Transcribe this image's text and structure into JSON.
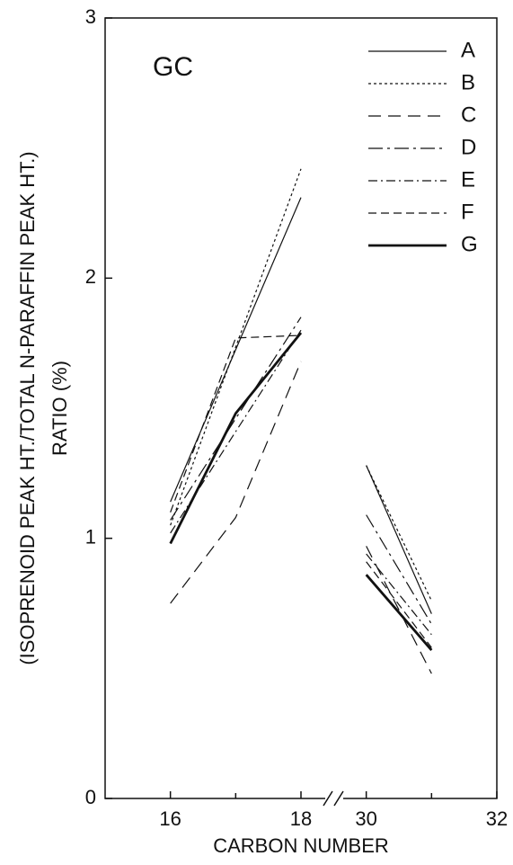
{
  "chart_data": {
    "type": "line",
    "annotation": "GC",
    "xlabel": "CARBON NUMBER",
    "ylabel": [
      "(ISOPRENOID PEAK HT./TOTAL N-PARAFFIN PEAK HT.)",
      "RATIO (%)"
    ],
    "xlim": [
      15,
      32
    ],
    "xbreak": [
      18,
      29
    ],
    "xticks": [
      16,
      18,
      30,
      32
    ],
    "xminorticks": [
      17,
      31
    ],
    "ylim": [
      0,
      3
    ],
    "yticks": [
      0,
      1,
      2,
      3
    ],
    "legend": "top-right",
    "series": [
      {
        "name": "A",
        "color": "#111",
        "dash": "none",
        "width": 1.2,
        "x": [
          16,
          18,
          30,
          31
        ],
        "values": [
          1.14,
          2.31,
          1.28,
          0.71
        ]
      },
      {
        "name": "B",
        "color": "#111",
        "dash": "3,3",
        "width": 1.2,
        "x": [
          16,
          18,
          30,
          31
        ],
        "values": [
          1.05,
          2.42,
          1.28,
          0.76
        ]
      },
      {
        "name": "C",
        "color": "#111",
        "dash": "14,8",
        "width": 1.2,
        "x": [
          16,
          17,
          18,
          30,
          31
        ],
        "values": [
          0.75,
          1.08,
          1.68,
          0.97,
          0.48
        ]
      },
      {
        "name": "D",
        "color": "#111",
        "dash": "16,5,3,5",
        "width": 1.2,
        "x": [
          16,
          18,
          30,
          31
        ],
        "values": [
          1.07,
          1.85,
          1.09,
          0.67
        ]
      },
      {
        "name": "E",
        "color": "#111",
        "dash": "10,4,2,4",
        "width": 1.2,
        "x": [
          16,
          18,
          30,
          31
        ],
        "values": [
          1.02,
          1.8,
          0.94,
          0.63
        ]
      },
      {
        "name": "F",
        "color": "#111",
        "dash": "9,5",
        "width": 1.2,
        "x": [
          16,
          17,
          18,
          30,
          31
        ],
        "values": [
          1.1,
          1.77,
          1.78,
          0.91,
          0.58
        ]
      },
      {
        "name": "G",
        "color": "#111",
        "dash": "none",
        "width": 2.8,
        "x": [
          16,
          17,
          18,
          30,
          31
        ],
        "values": [
          0.98,
          1.48,
          1.79,
          0.86,
          0.57
        ]
      }
    ]
  }
}
